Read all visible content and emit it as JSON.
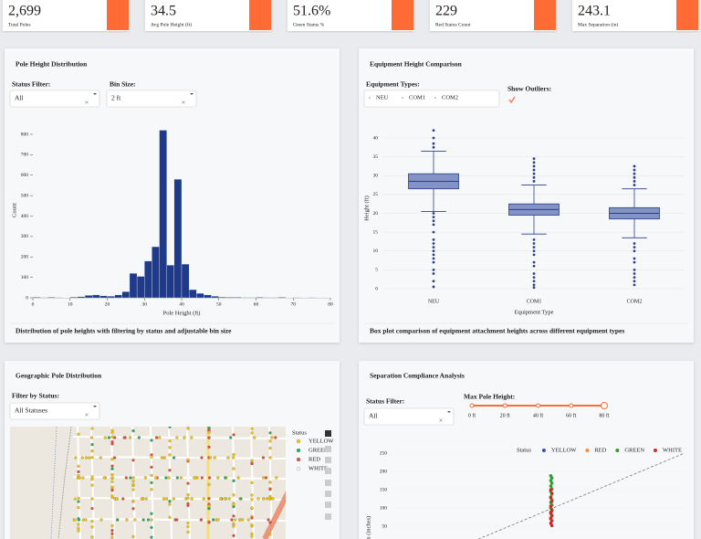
{
  "kpis": [
    {
      "value": "2,699",
      "label": "Total Poles"
    },
    {
      "value": "34.5",
      "label": "Avg Pole Height (ft)"
    },
    {
      "value": "51.6%",
      "label": "Green Status %"
    },
    {
      "value": "229",
      "label": "Red Status Count"
    },
    {
      "value": "243.1",
      "label": "Max Separation (in)"
    }
  ],
  "panels": {
    "height_distribution": {
      "title": "Pole Height Distribution",
      "filters": [
        {
          "label": "Status Filter:",
          "value": "All"
        },
        {
          "label": "Bin Size:",
          "value": "2 ft"
        }
      ],
      "caption": "Distribution of pole heights with filtering by status and adjustable bin size"
    },
    "equipment": {
      "title": "Equipment Height Comparison",
      "equipment_types_label": "Equipment Types:",
      "equipment_types": [
        "NEU",
        "COM1",
        "COM2"
      ],
      "outliers_label": "Show Outliers:",
      "caption": "Box plot comparison of equipment attachment heights across different equipment types"
    },
    "map": {
      "title": "Geographic Pole Distribution",
      "filter_label": "Filter by Status:",
      "filter_value": "All Statuses",
      "legend_title": "Status",
      "legend": [
        {
          "name": "YELLOW",
          "color": "#f1c40f"
        },
        {
          "name": "GREEN",
          "color": "#27ae60"
        },
        {
          "name": "RED",
          "color": "#e74c3c"
        },
        {
          "name": "WHITE",
          "color": "#f4f4f4"
        }
      ]
    },
    "separation": {
      "title": "Separation Compliance Analysis",
      "filter_label": "Status Filter:",
      "filter_value": "All",
      "slider_label": "Max Pole Height:",
      "slider_marks": [
        "0 ft",
        "20 ft",
        "40 ft",
        "60 ft",
        "80 ft"
      ]
    }
  },
  "chart_data": [
    {
      "type": "histogram",
      "x_label": "Pole Height (ft)",
      "y_label": "Count",
      "color": "#1f3a8a",
      "bins": [
        0,
        2,
        4,
        6,
        8,
        10,
        12,
        14,
        16,
        18,
        20,
        22,
        24,
        26,
        28,
        30,
        32,
        34,
        36,
        38,
        40,
        42,
        44,
        46,
        48,
        50,
        52,
        54,
        56,
        58,
        60,
        62,
        64,
        66,
        68,
        70,
        72,
        74,
        76,
        78,
        80
      ],
      "counts": [
        3,
        2,
        3,
        2,
        1,
        4,
        6,
        12,
        14,
        10,
        8,
        14,
        30,
        120,
        105,
        180,
        250,
        820,
        160,
        580,
        165,
        40,
        22,
        14,
        8,
        4,
        3,
        3,
        2,
        2,
        3,
        2,
        2,
        3,
        1,
        2,
        1,
        2,
        1,
        1
      ],
      "xlim": [
        0,
        80
      ],
      "xticks": [
        0,
        10,
        20,
        30,
        40,
        50,
        60,
        70,
        80
      ],
      "ylim": [
        0,
        850
      ],
      "yticks": [
        0,
        100,
        200,
        300,
        400,
        500,
        600,
        700,
        800
      ]
    },
    {
      "type": "box",
      "x_label": "Equipment Type",
      "y_label": "Height (ft)",
      "categories": [
        "NEU",
        "COM1",
        "COM2"
      ],
      "color": "#8393c6",
      "line_color": "#2b3f86",
      "show_outliers": true,
      "grid": true,
      "boxes": [
        {
          "low": 20.5,
          "q1": 26.5,
          "median": 28.5,
          "q3": 30.5,
          "high": 36.5,
          "outliers": [
            0.5,
            2,
            4,
            5,
            7,
            8,
            9,
            10,
            11,
            12,
            13,
            15,
            17,
            18,
            19,
            20,
            37.5,
            38.5,
            40,
            42
          ]
        },
        {
          "low": 14.5,
          "q1": 19.5,
          "median": 21,
          "q3": 22.5,
          "high": 27.5,
          "outliers": [
            0.3,
            1,
            2,
            3,
            4,
            6,
            7,
            9,
            10,
            11,
            12,
            13,
            28.5,
            29.5,
            30.5,
            31.5,
            32.5,
            33.5,
            34.5
          ]
        },
        {
          "low": 13.5,
          "q1": 18.5,
          "median": 20,
          "q3": 21.5,
          "high": 26.5,
          "outliers": [
            1,
            2,
            3,
            4,
            5,
            7,
            8,
            10,
            11,
            12,
            27.5,
            28.5,
            29.5,
            30.5,
            31.5,
            32.5
          ]
        }
      ],
      "ylim": [
        -1,
        43
      ],
      "yticks": [
        0,
        5,
        10,
        15,
        20,
        25,
        30,
        35,
        40
      ]
    },
    {
      "type": "scatter",
      "y_label": "Separation (inches)",
      "legend_title": "Status",
      "grid": true,
      "xlim": [
        0,
        80
      ],
      "ylim": [
        0,
        260
      ],
      "yticks": [
        50,
        100,
        150,
        200,
        250
      ],
      "reference_line": {
        "x": [
          20,
          80
        ],
        "y": [
          0,
          250
        ]
      },
      "series": [
        {
          "name": "YELLOW",
          "color": "#3b4cc0",
          "x": [],
          "y": []
        },
        {
          "name": "RED",
          "color": "#ff8c3a",
          "x": [],
          "y": []
        },
        {
          "name": "GREEN",
          "color": "#2ca02c",
          "x": [
            43.5,
            43.5,
            43.5,
            43.5,
            43.5,
            43.5,
            43.5,
            43.5,
            43.5,
            43.5,
            43.5,
            43.5,
            43.5,
            43.5,
            43.5,
            43.5,
            43.5
          ],
          "y": [
            188,
            182,
            175,
            168,
            160,
            152,
            145,
            138,
            130,
            122,
            115,
            108,
            100,
            92,
            85,
            78,
            70
          ]
        },
        {
          "name": "WHITE",
          "color": "#d62728",
          "x": [
            43.5,
            43.5,
            43.5,
            43.5,
            43.5,
            43.5,
            43.5,
            43.5,
            43.5,
            43.5,
            43.5,
            43.5
          ],
          "y": [
            150,
            140,
            128,
            118,
            105,
            95,
            88,
            80,
            72,
            65,
            58,
            52
          ]
        }
      ]
    }
  ]
}
